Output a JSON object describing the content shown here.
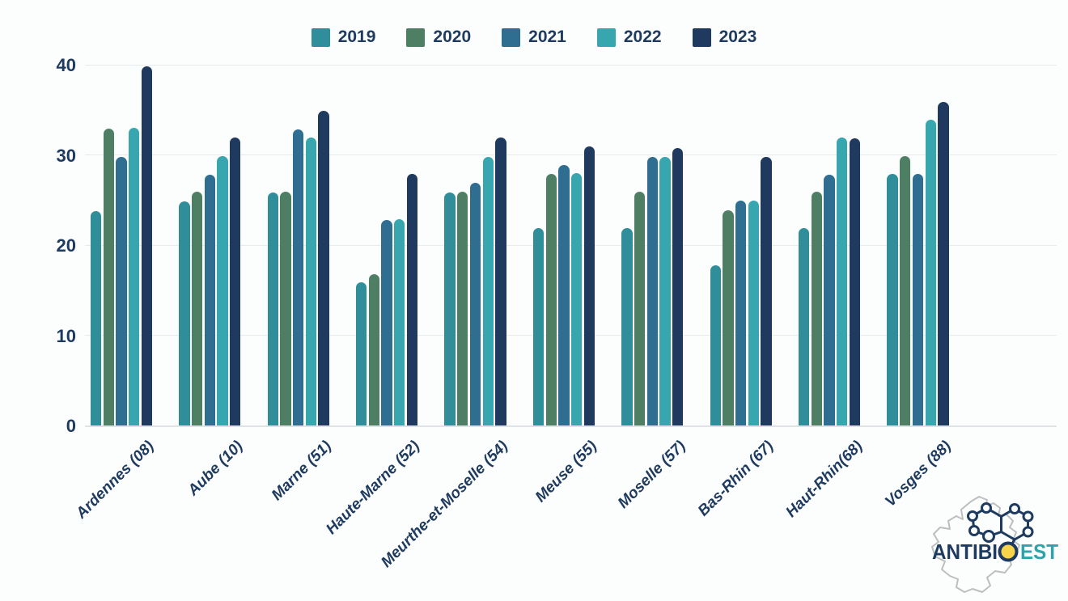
{
  "chart_data": {
    "type": "bar",
    "title": "",
    "xlabel": "",
    "ylabel": "",
    "categories": [
      "Ardennes (08)",
      "Aube (10)",
      "Marne (51)",
      "Haute-Marne (52)",
      "Meurthe-et-Moselle (54)",
      "Meuse (55)",
      "Moselle (57)",
      "Bas-Rhin (67)",
      "Haut-Rhin(68)",
      "Vosges (88)"
    ],
    "series": [
      {
        "name": "2019",
        "color": "#2f8e99",
        "values": [
          23.8,
          24.8,
          25.8,
          15.9,
          25.8,
          21.9,
          21.9,
          17.8,
          21.9,
          27.9
        ]
      },
      {
        "name": "2020",
        "color": "#4e7f64",
        "values": [
          32.9,
          25.9,
          25.9,
          16.8,
          25.9,
          27.9,
          25.9,
          23.9,
          25.9,
          29.9
        ]
      },
      {
        "name": "2021",
        "color": "#2f6e90",
        "values": [
          29.8,
          27.8,
          32.8,
          22.8,
          26.9,
          28.9,
          29.8,
          24.9,
          27.8,
          27.9
        ]
      },
      {
        "name": "2022",
        "color": "#38a6ae",
        "values": [
          33.0,
          29.9,
          31.9,
          22.9,
          29.8,
          28.0,
          29.8,
          24.9,
          31.9,
          33.9
        ]
      },
      {
        "name": "2023",
        "color": "#20395f",
        "values": [
          39.8,
          31.9,
          34.9,
          27.9,
          31.9,
          30.9,
          30.8,
          29.8,
          31.8,
          35.9
        ]
      }
    ],
    "ylim": [
      0,
      40
    ],
    "yticks": [
      0,
      10,
      20,
      30,
      40
    ],
    "grid": "horizontal",
    "legend_position": "top-center",
    "bar_style": "rounded-top-caps"
  },
  "colors": {
    "axis_text": "#1e3a5f",
    "gridline": "#e8ebec",
    "background": "#fcfdfd"
  },
  "logo": {
    "name": "ANTIBIOEST",
    "part_navy": "ANTIBI",
    "part_teal": "EST",
    "o_dot_color": "#f8d44a",
    "navy": "#1e3a5f",
    "teal": "#2fa3a8",
    "map_outline_color": "#bcbfc0"
  }
}
